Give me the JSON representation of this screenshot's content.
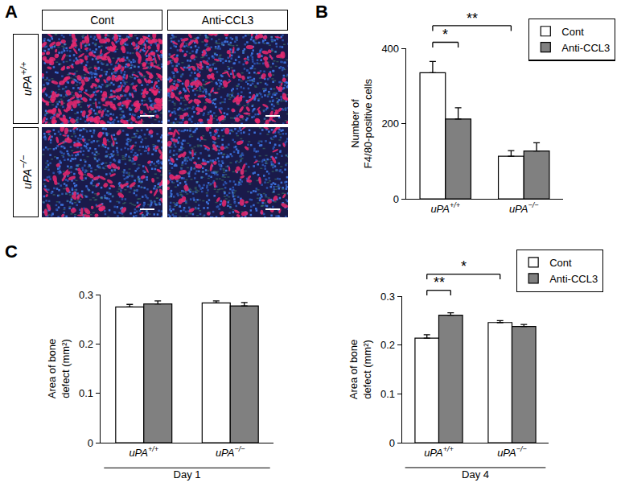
{
  "panel_labels": [
    "A",
    "B",
    "C"
  ],
  "image_panel": {
    "columns": [
      "Cont",
      "Anti-CCL3"
    ],
    "rows": [
      "uPA+/+",
      "uPA−/−"
    ]
  },
  "chart_data": [
    {
      "type": "bar",
      "categories": [
        "uPA+/+",
        "uPA−/−"
      ],
      "series": [
        {
          "name": "Cont",
          "color": "#ffffff",
          "values": [
            335,
            113
          ],
          "errors": [
            30,
            15
          ]
        },
        {
          "name": "Anti-CCL3",
          "color": "#808080",
          "values": [
            212,
            127
          ],
          "errors": [
            30,
            22
          ]
        }
      ],
      "ylabel": "Number of F4/80-positive cells",
      "ylim": [
        0,
        400
      ],
      "yticks": [
        0,
        200,
        400
      ],
      "legend": "top right",
      "significance": [
        {
          "label": "*",
          "from": {
            "category": "uPA+/+",
            "series": "Cont"
          },
          "to": {
            "category": "uPA+/+",
            "series": "Anti-CCL3"
          }
        },
        {
          "label": "**",
          "from": {
            "category": "uPA+/+",
            "series": "Cont"
          },
          "to": {
            "category": "uPA−/−",
            "series": "Cont"
          }
        }
      ]
    },
    {
      "type": "bar",
      "categories": [
        "uPA+/+",
        "uPA−/−"
      ],
      "series": [
        {
          "name": "Cont",
          "color": "#ffffff",
          "values": [
            0.275,
            0.283
          ],
          "errors": [
            0.005,
            0.004
          ]
        },
        {
          "name": "Anti-CCL3",
          "color": "#808080",
          "values": [
            0.281,
            0.277
          ],
          "errors": [
            0.006,
            0.007
          ]
        }
      ],
      "xlabel": "Day 1",
      "ylabel": "Area of bone defect (mm²)",
      "ylim": [
        0,
        0.3
      ],
      "yticks": [
        0,
        0.1,
        0.2,
        0.3
      ]
    },
    {
      "type": "bar",
      "categories": [
        "uPA+/+",
        "uPA−/−"
      ],
      "series": [
        {
          "name": "Cont",
          "color": "#ffffff",
          "values": [
            0.214,
            0.246
          ],
          "errors": [
            0.007,
            0.004
          ]
        },
        {
          "name": "Anti-CCL3",
          "color": "#808080",
          "values": [
            0.261,
            0.238
          ],
          "errors": [
            0.005,
            0.004
          ]
        }
      ],
      "xlabel": "Day 4",
      "ylabel": "Area of bone defect (mm²)",
      "ylim": [
        0,
        0.3
      ],
      "yticks": [
        0,
        0.1,
        0.2,
        0.3
      ],
      "legend": "top right",
      "significance": [
        {
          "label": "**",
          "from": {
            "category": "uPA+/+",
            "series": "Cont"
          },
          "to": {
            "category": "uPA+/+",
            "series": "Anti-CCL3"
          }
        },
        {
          "label": "*",
          "from": {
            "category": "uPA+/+",
            "series": "Cont"
          },
          "to": {
            "category": "uPA−/−",
            "series": "Cont"
          }
        }
      ]
    }
  ]
}
